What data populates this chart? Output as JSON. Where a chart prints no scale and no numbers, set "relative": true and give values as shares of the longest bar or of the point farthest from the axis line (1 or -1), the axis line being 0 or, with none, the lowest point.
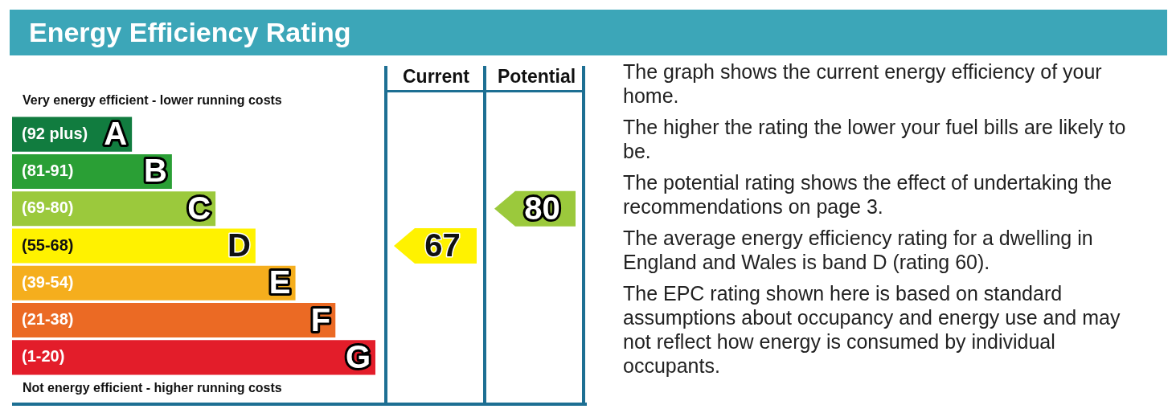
{
  "chart_data": {
    "type": "bar",
    "orientation": "horizontal",
    "relative": true,
    "title": "Energy Efficiency Rating",
    "categories": [
      "(92 plus) A",
      "(81-91) B",
      "(69-80) C",
      "(55-68) D",
      "(39-54) E",
      "(21-38) F",
      "(1-20) G"
    ],
    "values": [
      0.33,
      0.44,
      0.56,
      0.67,
      0.78,
      0.89,
      1
    ],
    "colors": [
      "#117c3f",
      "#2a9f35",
      "#9bc93c",
      "#fff200",
      "#f5ae1d",
      "#eb6a24",
      "#e31d2a"
    ],
    "annotations": [
      "Very energy efficient - lower running costs",
      "Not energy efficient - higher running costs",
      "Current",
      "Potential",
      "The graph shows the current energy efficiency of your home.",
      "The higher the rating the lower your fuel bills are likely to be.",
      "The potential rating shows the effect of undertaking the recommendations on page 3.",
      "The average energy efficiency rating for a dwelling in England and Wales is band D (rating 60).",
      "The EPC rating shown here is based on standard assumptions about occupancy and energy use and may not reflect how energy is consumed by individual occupants.",
      "67",
      "80"
    ],
    "legend": false
  }
}
